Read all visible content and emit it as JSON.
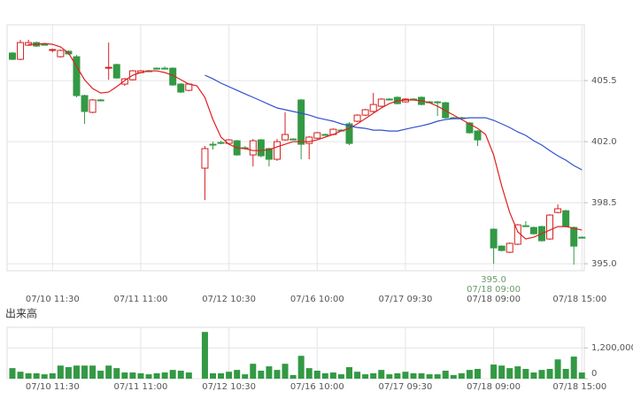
{
  "chart_data": [
    {
      "type": "candlestick",
      "categories": [
        null,
        null,
        null,
        null,
        null,
        "07/10 11:30",
        null,
        null,
        null,
        null,
        null,
        null,
        null,
        null,
        null,
        null,
        "07/11 11:00",
        null,
        null,
        null,
        null,
        null,
        null,
        null,
        null,
        null,
        null,
        "07/12 10:30",
        null,
        null,
        null,
        null,
        null,
        null,
        null,
        null,
        null,
        null,
        "07/16 10:00",
        null,
        null,
        null,
        null,
        null,
        null,
        null,
        null,
        null,
        null,
        "07/17 09:30",
        null,
        null,
        null,
        null,
        null,
        null,
        null,
        null,
        null,
        null,
        "07/18 09:00",
        null,
        null,
        null,
        null,
        null,
        null,
        null,
        null,
        null,
        null,
        "07/18 15:00"
      ],
      "open": [
        407.08,
        406.72,
        407.53,
        407.68,
        407.58,
        407.23,
        406.87,
        407.18,
        406.87,
        404.64,
        403.68,
        404.39,
        406.21,
        406.42,
        405.3,
        405.55,
        405.96,
        406.06,
        406.21,
        406.21,
        406.21,
        405.3,
        404.94,
        null,
        400.48,
        401.85,
        401.95,
        401.9,
        402.05,
        401.65,
        401.24,
        402.1,
        401.6,
        400.99,
        402.1,
        402.15,
        404.39,
        401.9,
        402.2,
        402.41,
        402.41,
        402.66,
        403.02,
        403.17,
        403.52,
        403.73,
        404.03,
        404.44,
        404.54,
        404.28,
        404.44,
        404.54,
        404.28,
        404.28,
        404.23,
        403.37,
        403.37,
        403.07,
        402.61,
        null,
        396.98,
        396.01,
        395.66,
        396.12,
        397.18,
        397.08,
        397.13,
        396.42,
        397.94,
        398.04,
        397.08,
        396.52
      ],
      "high": [
        407.13,
        407.84,
        407.84,
        407.73,
        407.63,
        407.33,
        407.28,
        407.23,
        406.97,
        404.69,
        404.44,
        404.44,
        407.68,
        406.47,
        405.65,
        406.11,
        406.11,
        406.11,
        406.26,
        406.31,
        406.26,
        405.35,
        405.35,
        null,
        401.75,
        402.0,
        402.05,
        402.15,
        402.1,
        401.75,
        402.15,
        402.15,
        401.65,
        402.15,
        403.68,
        402.2,
        404.44,
        402.31,
        402.56,
        402.46,
        402.76,
        402.71,
        403.12,
        403.57,
        403.88,
        404.79,
        404.49,
        404.49,
        404.59,
        404.49,
        404.49,
        404.59,
        404.33,
        404.33,
        404.28,
        403.42,
        403.42,
        403.12,
        402.66,
        null,
        397.03,
        396.06,
        396.22,
        397.28,
        397.44,
        397.13,
        397.18,
        397.84,
        398.4,
        398.09,
        397.13,
        396.57
      ],
      "low": [
        406.67,
        406.67,
        407.48,
        407.43,
        407.53,
        407.13,
        406.82,
        406.97,
        404.54,
        403.02,
        403.63,
        404.34,
        405.55,
        405.6,
        405.2,
        405.5,
        405.91,
        406.01,
        406.16,
        406.16,
        405.2,
        404.79,
        404.89,
        null,
        398.65,
        401.55,
        401.85,
        401.85,
        401.19,
        401.55,
        400.58,
        401.1,
        400.58,
        400.9,
        402.05,
        402.1,
        400.99,
        400.99,
        402.15,
        402.36,
        402.36,
        402.61,
        401.8,
        403.12,
        403.47,
        403.68,
        403.98,
        404.39,
        404.13,
        404.23,
        404.39,
        404.08,
        404.23,
        403.47,
        403.32,
        403.32,
        403.32,
        402.46,
        401.75,
        null,
        395.0,
        395.71,
        395.61,
        396.07,
        397.13,
        396.67,
        396.27,
        396.37,
        397.89,
        397.08,
        394.95,
        396.47
      ],
      "close": [
        406.72,
        407.68,
        407.68,
        407.48,
        407.58,
        407.28,
        407.23,
        407.03,
        404.64,
        403.73,
        404.39,
        404.39,
        406.26,
        405.65,
        405.6,
        406.06,
        406.06,
        406.06,
        406.21,
        406.21,
        405.25,
        404.84,
        405.3,
        null,
        401.6,
        401.85,
        401.95,
        402.1,
        401.24,
        401.65,
        402.05,
        401.19,
        400.99,
        402.0,
        402.41,
        402.15,
        401.85,
        402.26,
        402.51,
        402.41,
        402.71,
        402.66,
        401.9,
        403.52,
        403.83,
        404.13,
        404.44,
        404.44,
        404.18,
        404.44,
        404.44,
        404.13,
        404.28,
        404.28,
        403.37,
        403.37,
        403.37,
        402.51,
        402.1,
        null,
        395.91,
        395.76,
        396.17,
        397.23,
        397.18,
        396.72,
        396.32,
        397.79,
        398.15,
        397.13,
        396.01,
        396.52
      ],
      "up_color": "#d42020",
      "down_color": "#339944",
      "series": [
        {
          "color": "#e02020",
          "values": [
            null,
            null,
            407.58,
            407.58,
            407.63,
            407.58,
            407.43,
            407.08,
            406.31,
            405.55,
            405.05,
            404.79,
            404.84,
            405.15,
            405.5,
            405.81,
            405.96,
            406.06,
            406.06,
            405.96,
            405.81,
            405.55,
            405.3,
            405.2,
            404.54,
            403.27,
            402.26,
            401.85,
            401.65,
            401.6,
            401.49,
            401.49,
            401.54,
            401.7,
            401.85,
            402.0,
            402.0,
            402.0,
            402.1,
            402.26,
            402.41,
            402.61,
            402.76,
            403.02,
            403.32,
            403.63,
            403.93,
            404.18,
            404.34,
            404.39,
            404.39,
            404.34,
            404.23,
            404.03,
            403.78,
            403.52,
            403.27,
            403.02,
            402.76,
            402.41,
            401.24,
            399.46,
            397.94,
            396.83,
            396.42,
            396.52,
            396.72,
            396.93,
            397.13,
            397.13,
            397.03,
            396.93
          ]
        },
        {
          "color": "#3050d0",
          "values": [
            null,
            null,
            null,
            null,
            null,
            null,
            null,
            null,
            null,
            null,
            null,
            null,
            null,
            null,
            null,
            null,
            null,
            null,
            null,
            null,
            null,
            null,
            null,
            null,
            405.81,
            405.6,
            405.35,
            405.15,
            404.94,
            404.74,
            404.54,
            404.34,
            404.13,
            403.93,
            403.83,
            403.73,
            403.63,
            403.52,
            403.37,
            403.27,
            403.17,
            403.02,
            402.91,
            402.81,
            402.76,
            402.66,
            402.66,
            402.61,
            402.61,
            402.71,
            402.81,
            402.91,
            403.02,
            403.17,
            403.27,
            403.32,
            403.32,
            403.37,
            403.37,
            403.37,
            403.22,
            403.02,
            402.81,
            402.56,
            402.36,
            402.05,
            401.8,
            401.49,
            401.19,
            400.94,
            400.63,
            400.38
          ]
        }
      ],
      "annotation": {
        "value": 395.0,
        "label": "395.0",
        "time": "07/18 09:00"
      },
      "ylim": [
        394.6,
        408.7
      ],
      "yticks": [
        {
          "value": 395.0,
          "label": "395.0"
        },
        398.5,
        {
          "value": 402.0,
          "label": "402.0"
        },
        405.5
      ],
      "grid": true
    },
    {
      "type": "bar",
      "title": "出来高",
      "color": "#339944",
      "values": [
        410000,
        270000,
        210000,
        210000,
        170000,
        210000,
        510000,
        450000,
        510000,
        510000,
        510000,
        310000,
        510000,
        410000,
        240000,
        240000,
        210000,
        170000,
        210000,
        240000,
        340000,
        310000,
        240000,
        null,
        1820000,
        210000,
        210000,
        270000,
        340000,
        170000,
        580000,
        310000,
        480000,
        340000,
        580000,
        140000,
        890000,
        410000,
        310000,
        210000,
        240000,
        170000,
        450000,
        270000,
        170000,
        210000,
        340000,
        170000,
        210000,
        270000,
        210000,
        210000,
        170000,
        170000,
        310000,
        140000,
        210000,
        340000,
        380000,
        null,
        550000,
        510000,
        410000,
        480000,
        380000,
        240000,
        340000,
        380000,
        750000,
        380000,
        860000,
        240000
      ],
      "ylim": [
        0,
        2000000
      ],
      "yticks": [
        0,
        {
          "value": 1200000,
          "label": "1,200,000"
        }
      ],
      "grid": true
    }
  ]
}
